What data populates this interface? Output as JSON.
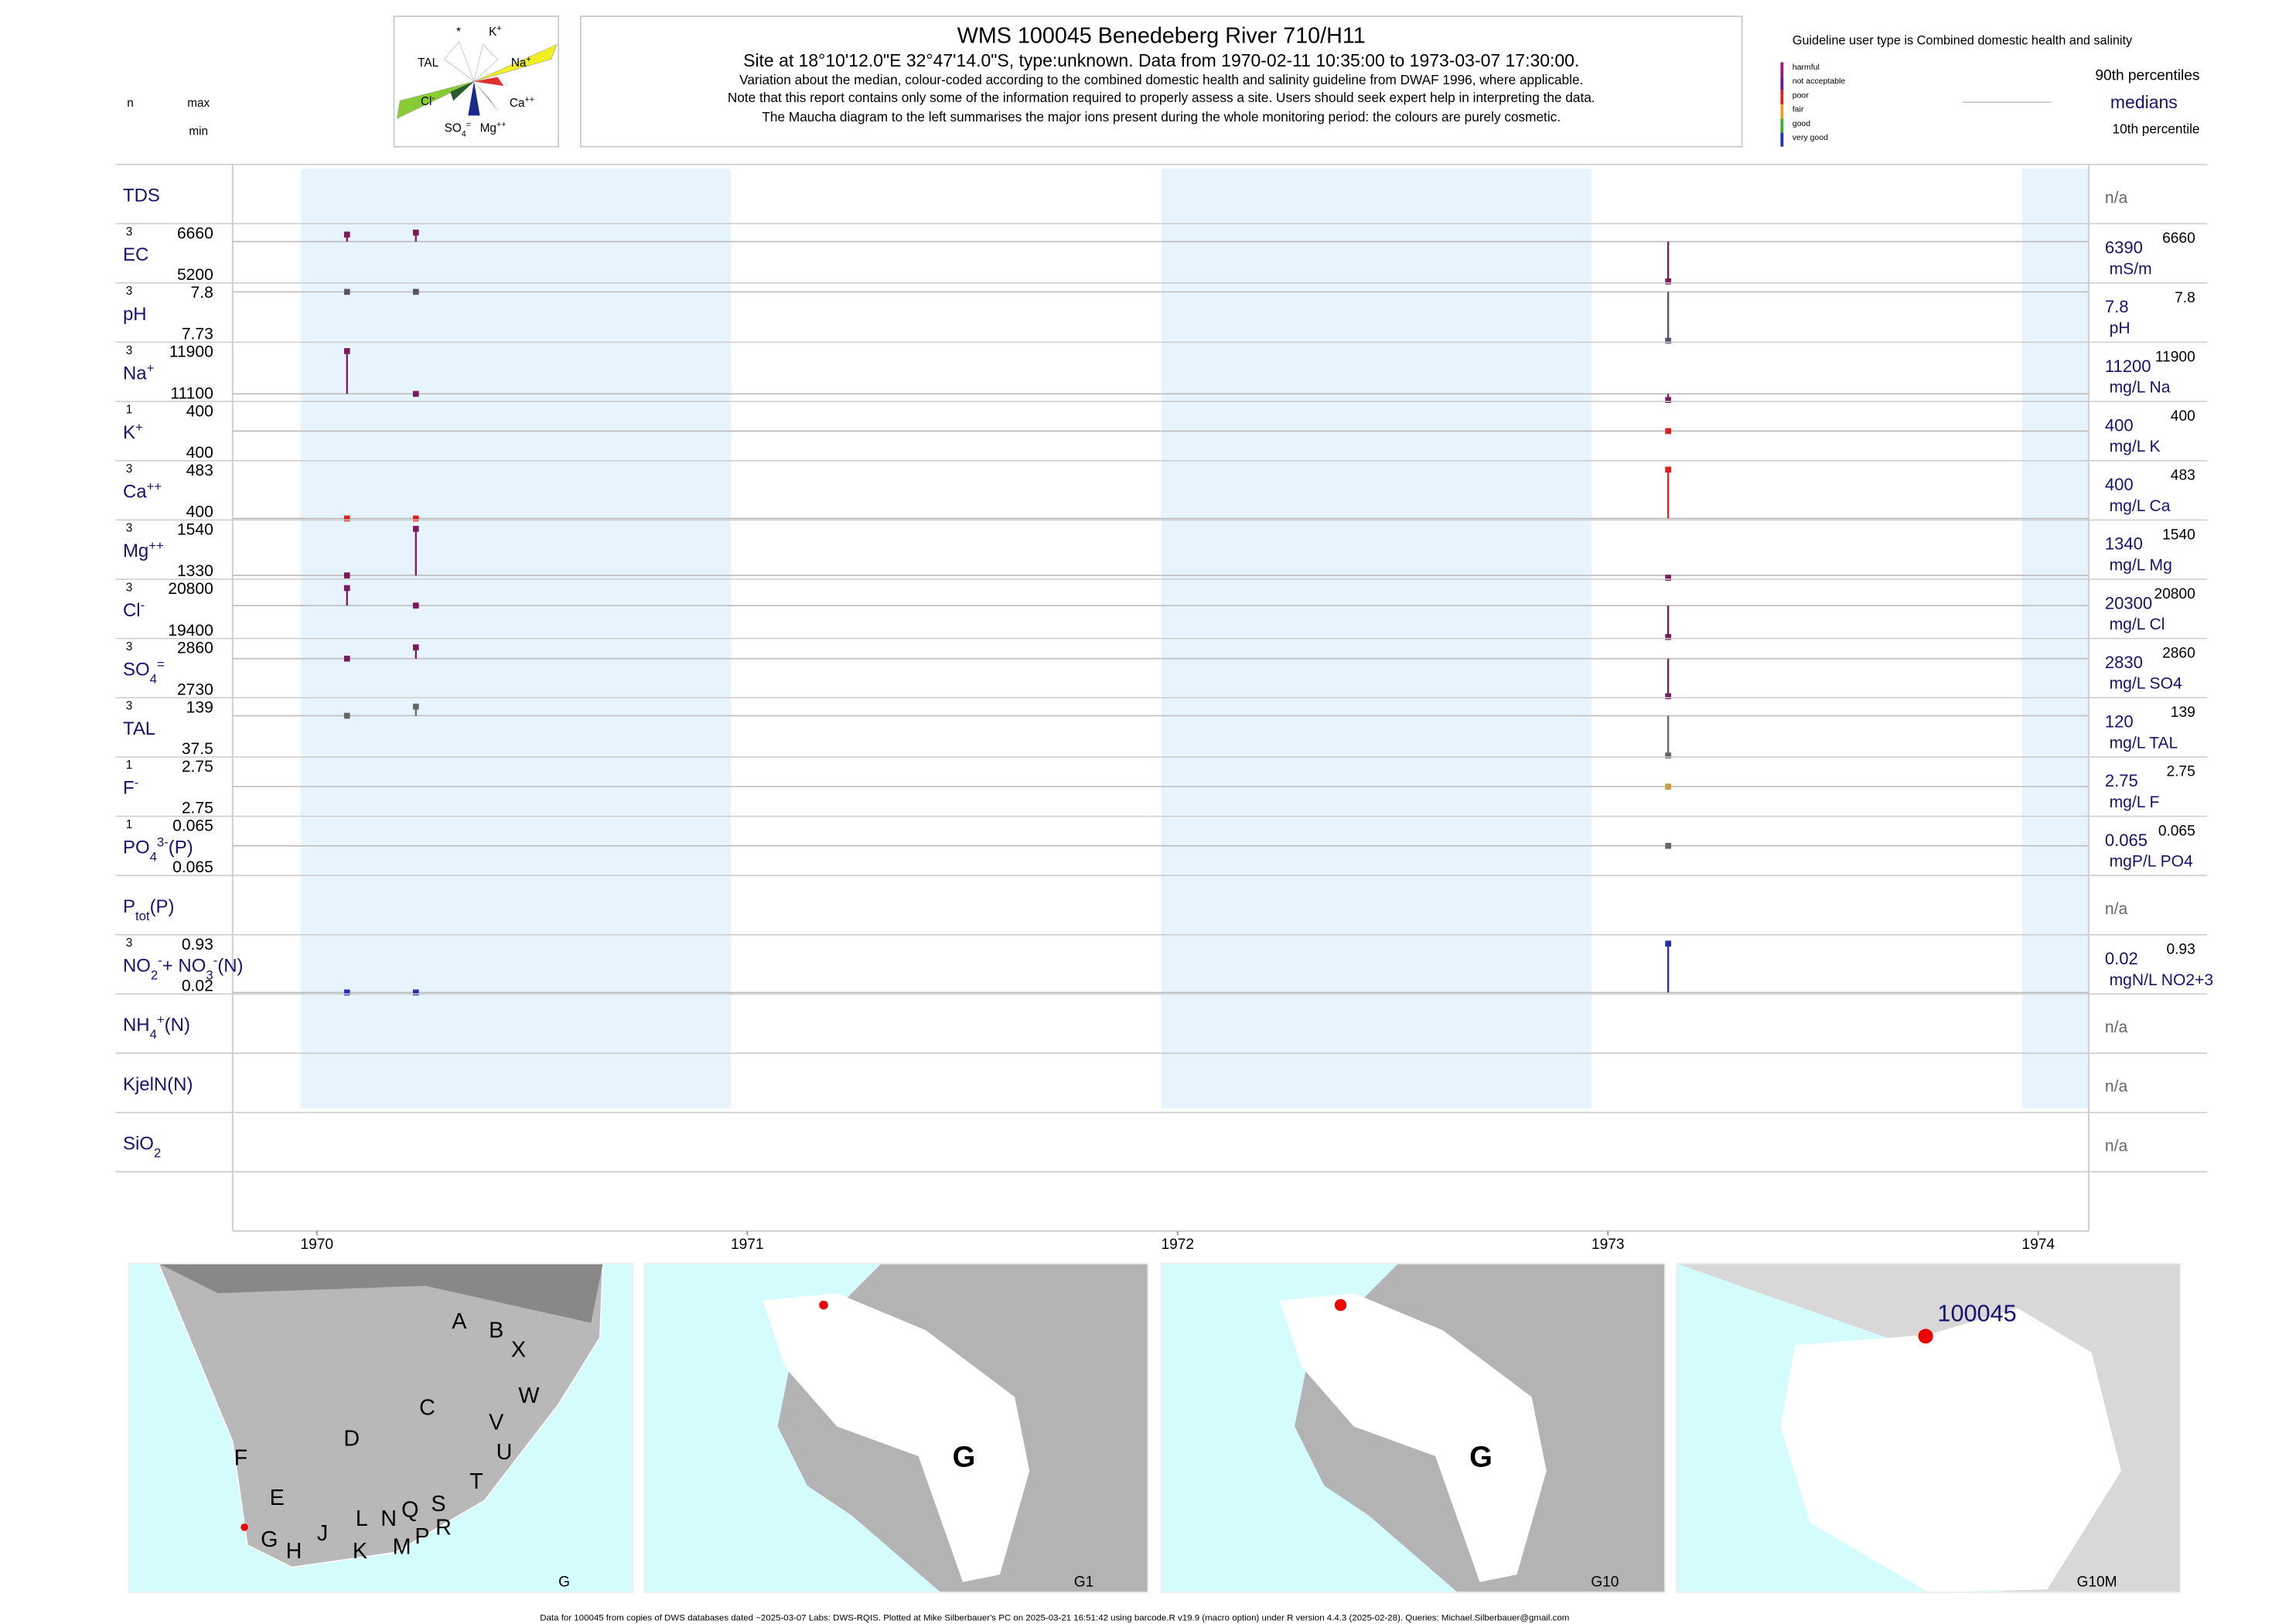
{
  "header": {
    "maucha": [
      [
        {
          "t": "*"
        }
      ],
      [
        {
          "t": "K"
        },
        {
          "sup": "+"
        }
      ],
      [
        {
          "t": "TAL"
        }
      ],
      [
        {
          "t": "Na"
        },
        {
          "sup": "+"
        }
      ],
      [
        {
          "t": "Cl"
        },
        {
          "sup": "-"
        }
      ],
      [
        {
          "t": "Ca"
        },
        {
          "sup": "++"
        }
      ],
      [
        {
          "t": "SO"
        },
        {
          "sub": "4"
        },
        {
          "sup": "="
        }
      ],
      [
        {
          "t": "Mg"
        },
        {
          "sup": "++"
        }
      ]
    ],
    "title": "WMS 100045  Benedeberg River 710/H11",
    "subtitle": "Site at 18°10'12.0\"E 32°47'14.0\"S, type:unknown.  Data from 1970-02-11 10:35:00 to 1973-03-07 17:30:00.",
    "notes": [
      "Variation about the median,  colour-coded according to the combined domestic health and salinity guideline from DWAF 1996, where applicable.",
      "Note that this report contains only some of the information required to properly assess a site. Users should seek expert help in interpreting the data.",
      "The Maucha diagram to the left summarises the major ions present during the whole monitoring period: the colours are purely cosmetic."
    ],
    "col_n": "n",
    "col_max": "max",
    "col_min": "min"
  },
  "legend": {
    "title": "Guideline user type is Combined domestic health and salinity",
    "classes": [
      {
        "name": "harmful",
        "color": "#a0186e"
      },
      {
        "name": "not acceptable",
        "color": "#6a1a8a"
      },
      {
        "name": "poor",
        "color": "#e02020"
      },
      {
        "name": "fair",
        "color": "#f0a020"
      },
      {
        "name": "good",
        "color": "#40b030"
      },
      {
        "name": "very good",
        "color": "#2030b0"
      }
    ],
    "p90": "90th percentiles",
    "median": "medians",
    "p10": "10th percentile"
  },
  "chart_data": {
    "type": "strip",
    "xlim": [
      1969.804,
      1974.117
    ],
    "xticks": [
      1970,
      1971,
      1972,
      1973,
      1974
    ],
    "rows": [
      {
        "label": [
          {
            "t": "TDS"
          }
        ],
        "note": "n/a"
      },
      {
        "label": [
          {
            "t": "EC"
          }
        ],
        "n": 3,
        "max": 6660,
        "min": 5200,
        "median": 6390,
        "unit": "mS/m",
        "x": [
          1970.07,
          1970.23,
          1973.14
        ],
        "values": [
          6600,
          6660,
          5200
        ],
        "colors": [
          "#7a1a5e",
          "#7a1a5e",
          "#7a1a5e"
        ]
      },
      {
        "label": [
          {
            "t": "pH"
          }
        ],
        "n": 3,
        "max": 7.8,
        "min": 7.73,
        "median": 7.8,
        "unit": "pH",
        "x": [
          1970.07,
          1970.23,
          1973.14
        ],
        "values": [
          7.8,
          7.8,
          7.73
        ],
        "colors": [
          "#555566",
          "#555566",
          "#555566"
        ]
      },
      {
        "label": [
          {
            "t": "Na"
          },
          {
            "sup": "+"
          }
        ],
        "n": 3,
        "max": 11900,
        "min": 11100,
        "median": 11200,
        "unit": "mg/L Na",
        "x": [
          1970.07,
          1970.23,
          1973.14
        ],
        "values": [
          11900,
          11200,
          11100
        ],
        "colors": [
          "#7a1a5e",
          "#7a1a5e",
          "#7a1a5e"
        ]
      },
      {
        "label": [
          {
            "t": "K"
          },
          {
            "sup": "+"
          }
        ],
        "n": 1,
        "max": 400,
        "min": 400,
        "median": 400,
        "unit": "mg/L K",
        "x": [
          1973.14
        ],
        "values": [
          400
        ],
        "colors": [
          "#e02020"
        ]
      },
      {
        "label": [
          {
            "t": "Ca"
          },
          {
            "sup": "++"
          }
        ],
        "n": 3,
        "max": 483,
        "min": 400,
        "median": 400,
        "unit": "mg/L Ca",
        "x": [
          1970.07,
          1970.23,
          1973.14
        ],
        "values": [
          400,
          400,
          483
        ],
        "colors": [
          "#e02020",
          "#e02020",
          "#e02020"
        ]
      },
      {
        "label": [
          {
            "t": "Mg"
          },
          {
            "sup": "++"
          }
        ],
        "n": 3,
        "max": 1540,
        "min": 1330,
        "median": 1340,
        "unit": "mg/L Mg",
        "x": [
          1970.07,
          1970.23,
          1973.14
        ],
        "values": [
          1340,
          1540,
          1330
        ],
        "colors": [
          "#7a1a5e",
          "#7a1a5e",
          "#7a1a5e"
        ]
      },
      {
        "label": [
          {
            "t": "Cl"
          },
          {
            "sup": "-"
          }
        ],
        "n": 3,
        "max": 20800,
        "min": 19400,
        "median": 20300,
        "unit": "mg/L Cl",
        "x": [
          1970.07,
          1970.23,
          1973.14
        ],
        "values": [
          20800,
          20300,
          19400
        ],
        "colors": [
          "#7a1a5e",
          "#7a1a5e",
          "#7a1a5e"
        ]
      },
      {
        "label": [
          {
            "t": "SO"
          },
          {
            "sub": "4"
          },
          {
            "sup": "="
          }
        ],
        "n": 3,
        "max": 2860,
        "min": 2730,
        "median": 2830,
        "unit": "mg/L SO4",
        "x": [
          1970.07,
          1970.23,
          1973.14
        ],
        "values": [
          2830,
          2860,
          2730
        ],
        "colors": [
          "#7a1a5e",
          "#7a1a5e",
          "#7a1a5e"
        ]
      },
      {
        "label": [
          {
            "t": "TAL"
          }
        ],
        "n": 3,
        "max": 139,
        "min": 37.5,
        "median": 120,
        "unit": "mg/L TAL",
        "x": [
          1970.07,
          1970.23,
          1973.14
        ],
        "values": [
          120,
          139,
          37.5
        ],
        "colors": [
          "#666666",
          "#666666",
          "#666666"
        ]
      },
      {
        "label": [
          {
            "t": "F"
          },
          {
            "sup": "-"
          }
        ],
        "n": 1,
        "max": 2.75,
        "min": 2.75,
        "median": 2.75,
        "unit": "mg/L F",
        "x": [
          1973.14
        ],
        "values": [
          2.75
        ],
        "colors": [
          "#c8a040"
        ]
      },
      {
        "label": [
          {
            "t": "PO"
          },
          {
            "sub": "4"
          },
          {
            "sup": "3-"
          },
          {
            "t": "(P)"
          }
        ],
        "n": 1,
        "max": 0.065,
        "min": 0.065,
        "median": 0.065,
        "unit": "mgP/L PO4",
        "x": [
          1973.14
        ],
        "values": [
          0.065
        ],
        "colors": [
          "#666666"
        ]
      },
      {
        "label": [
          {
            "t": "P"
          },
          {
            "sub": "tot"
          },
          {
            "t": "(P)"
          }
        ],
        "note": "n/a"
      },
      {
        "label": [
          {
            "t": "NO"
          },
          {
            "sub": "2"
          },
          {
            "sup": "-"
          },
          {
            "t": "+ NO"
          },
          {
            "sub": "3"
          },
          {
            "sup": "-"
          },
          {
            "t": "(N)"
          }
        ],
        "n": 3,
        "max": 0.93,
        "min": 0.02,
        "median": 0.02,
        "unit": "mgN/L NO2+3",
        "x": [
          1970.07,
          1970.23,
          1973.14
        ],
        "values": [
          0.02,
          0.02,
          0.93
        ],
        "colors": [
          "#2030b0",
          "#2030b0",
          "#2030b0"
        ]
      },
      {
        "label": [
          {
            "t": "NH"
          },
          {
            "sub": "4"
          },
          {
            "sup": "+"
          },
          {
            "t": "(N)"
          }
        ],
        "note": "n/a"
      },
      {
        "label": [
          {
            "t": "KjelN(N)"
          }
        ],
        "note": "n/a"
      },
      {
        "label": [
          {
            "t": "SiO"
          },
          {
            "sub": "2"
          }
        ],
        "note": "n/a"
      }
    ]
  },
  "maps": [
    {
      "label": "G",
      "letters": [
        "A",
        "B",
        "X",
        "W",
        "C",
        "V",
        "U",
        "D",
        "F",
        "T",
        "E",
        "L",
        "N",
        "Q",
        "S",
        "R",
        "G",
        "H",
        "J",
        "K",
        "M",
        "P"
      ]
    },
    {
      "label": "G1",
      "letters": [
        "G"
      ]
    },
    {
      "label": "G10",
      "letters": [
        "G"
      ]
    },
    {
      "label": "G10M",
      "letters": [
        "100045"
      ]
    }
  ],
  "footer": "Data for 100045 from copies of DWS databases dated ~2025-03-07 Labs: DWS-RQIS. Plotted at Mike Silberbauer's PC on 2025-03-21 16:51:42 using barcode.R v19.9 (macro option) under R version 4.4.3 (2025-02-28). Queries: Michael.Silberbauer@gmail.com"
}
